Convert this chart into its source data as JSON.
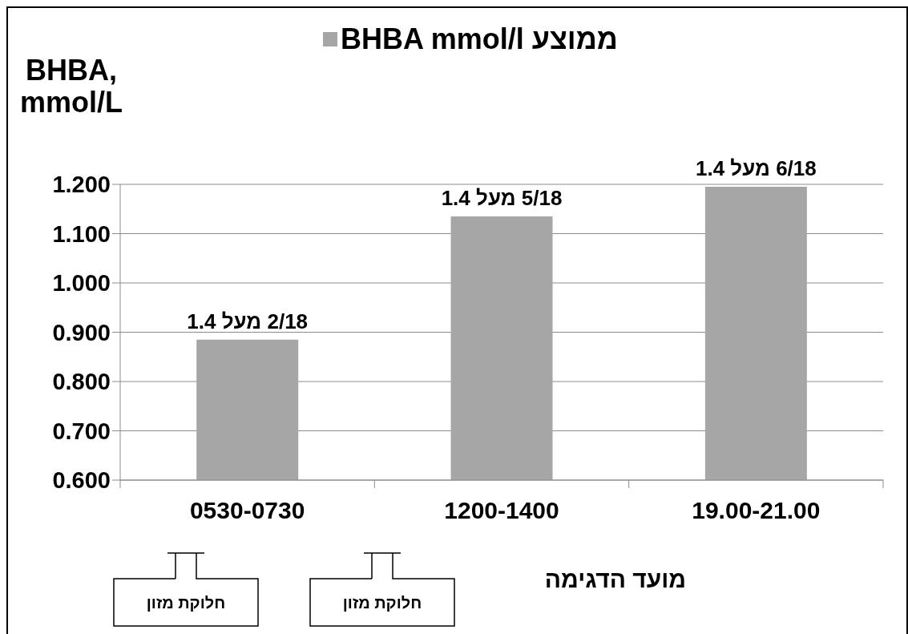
{
  "chart_data": {
    "type": "bar",
    "categories": [
      "0530-0730",
      "1200-1400",
      "19.00-21.00"
    ],
    "series": [
      {
        "name": "ממוצע BHBA mmol/l",
        "color": "#a6a6a6",
        "values": [
          0.885,
          1.135,
          1.195
        ],
        "value_labels": [
          "2/18 מעל 1.4",
          "5/18 מעל 1.4",
          "6/18 מעל 1.4"
        ]
      }
    ],
    "ylabel": "BHBA, mmol/L",
    "xlabel": "מועד הדגימה",
    "annotations": [
      "חלוקת מזון",
      "חלוקת מזון"
    ],
    "ylim": [
      0.6,
      1.2
    ],
    "yticks": [
      {
        "value": 0.6,
        "label": "0.600"
      },
      {
        "value": 0.7,
        "label": "0.700"
      },
      {
        "value": 0.8,
        "label": "0.800"
      },
      {
        "value": 0.9,
        "label": "0.900"
      },
      {
        "value": 1.0,
        "label": "1.000"
      },
      {
        "value": 1.1,
        "label": "1.100"
      },
      {
        "value": 1.2,
        "label": "1.200"
      }
    ],
    "grid": "y",
    "legend": "top"
  }
}
